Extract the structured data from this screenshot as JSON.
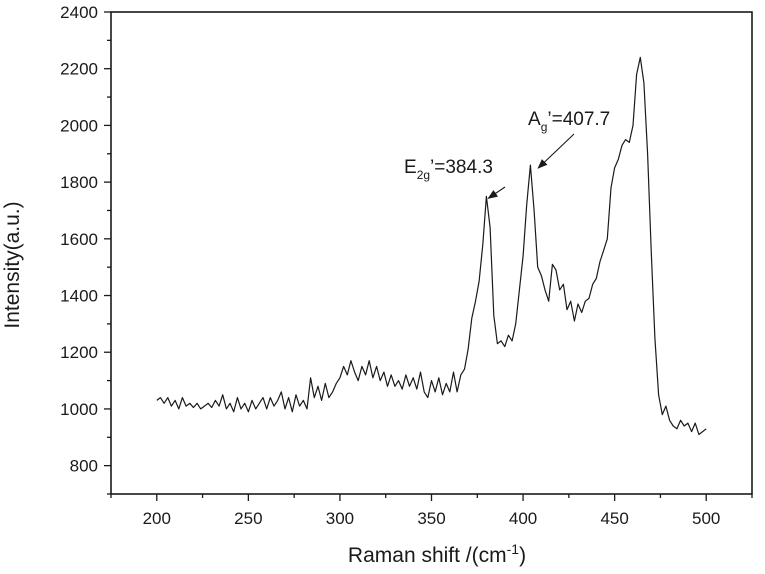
{
  "chart_data": {
    "type": "line",
    "title": "",
    "xlabel_main": "Raman shift /(cm",
    "xlabel_sup": "-1",
    "xlabel_end": ")",
    "ylabel": "Intensity(a.u.)",
    "xlim": [
      175,
      525
    ],
    "ylim": [
      700,
      2400
    ],
    "grid": false,
    "legend": "none",
    "x_ticks": [
      200,
      250,
      300,
      350,
      400,
      450,
      500
    ],
    "y_ticks": [
      800,
      1000,
      1200,
      1400,
      1600,
      1800,
      2000,
      2200,
      2400
    ],
    "line_color": "#1a1a1a",
    "series": [
      {
        "x": [
          200,
          202,
          204,
          206,
          208,
          210,
          212,
          214,
          216,
          218,
          220,
          222,
          224,
          226,
          228,
          230,
          232,
          234,
          236,
          238,
          240,
          242,
          244,
          246,
          248,
          250,
          252,
          254,
          256,
          258,
          260,
          262,
          264,
          266,
          268,
          270,
          272,
          274,
          276,
          278,
          280,
          282,
          284,
          286,
          288,
          290,
          292,
          294,
          296,
          298,
          300,
          302,
          304,
          306,
          308,
          310,
          312,
          314,
          316,
          318,
          320,
          322,
          324,
          326,
          328,
          330,
          332,
          334,
          336,
          338,
          340,
          342,
          344,
          346,
          348,
          350,
          352,
          354,
          356,
          358,
          360,
          362,
          364,
          366,
          368,
          370,
          372,
          374,
          376,
          378,
          380,
          382,
          384,
          386,
          388,
          390,
          392,
          394,
          396,
          398,
          400,
          402,
          404,
          406,
          408,
          410,
          412,
          414,
          416,
          418,
          420,
          422,
          424,
          426,
          428,
          430,
          432,
          434,
          436,
          438,
          440,
          442,
          444,
          446,
          448,
          450,
          452,
          454,
          456,
          458,
          460,
          462,
          464,
          466,
          468,
          470,
          472,
          474,
          476,
          478,
          480,
          482,
          484,
          486,
          488,
          490,
          492,
          494,
          496,
          498,
          500
        ],
        "y": [
          1030,
          1040,
          1020,
          1040,
          1010,
          1030,
          1000,
          1040,
          1010,
          1020,
          1005,
          1020,
          1000,
          1010,
          1020,
          1005,
          1030,
          1010,
          1050,
          1000,
          1020,
          990,
          1040,
          1000,
          1020,
          990,
          1030,
          1000,
          1020,
          1040,
          1000,
          1040,
          1010,
          1030,
          1060,
          1000,
          1040,
          990,
          1050,
          1010,
          1030,
          1000,
          1110,
          1040,
          1080,
          1030,
          1090,
          1040,
          1060,
          1090,
          1110,
          1150,
          1120,
          1170,
          1130,
          1100,
          1150,
          1120,
          1170,
          1110,
          1150,
          1100,
          1130,
          1080,
          1120,
          1080,
          1100,
          1070,
          1120,
          1080,
          1110,
          1070,
          1130,
          1060,
          1040,
          1100,
          1060,
          1110,
          1050,
          1090,
          1060,
          1130,
          1060,
          1120,
          1140,
          1210,
          1320,
          1380,
          1450,
          1580,
          1750,
          1640,
          1330,
          1230,
          1240,
          1220,
          1260,
          1240,
          1300,
          1420,
          1540,
          1720,
          1860,
          1700,
          1500,
          1470,
          1420,
          1380,
          1510,
          1490,
          1420,
          1440,
          1350,
          1380,
          1310,
          1370,
          1340,
          1380,
          1390,
          1440,
          1460,
          1520,
          1560,
          1600,
          1780,
          1850,
          1880,
          1930,
          1950,
          1940,
          2000,
          2180,
          2240,
          2150,
          1900,
          1550,
          1250,
          1050,
          980,
          1010,
          960,
          940,
          930,
          960,
          940,
          950,
          920,
          950,
          910,
          920,
          930
        ]
      }
    ],
    "annotations": [
      {
        "label_main": "E",
        "label_sub": "2g",
        "label_rest": "’=384.3",
        "peak_x": 384.3,
        "peak_y": 1750
      },
      {
        "label_main": "A",
        "label_sub": "g",
        "label_rest": "’=407.7",
        "peak_x": 407.7,
        "peak_y": 1860
      }
    ]
  }
}
